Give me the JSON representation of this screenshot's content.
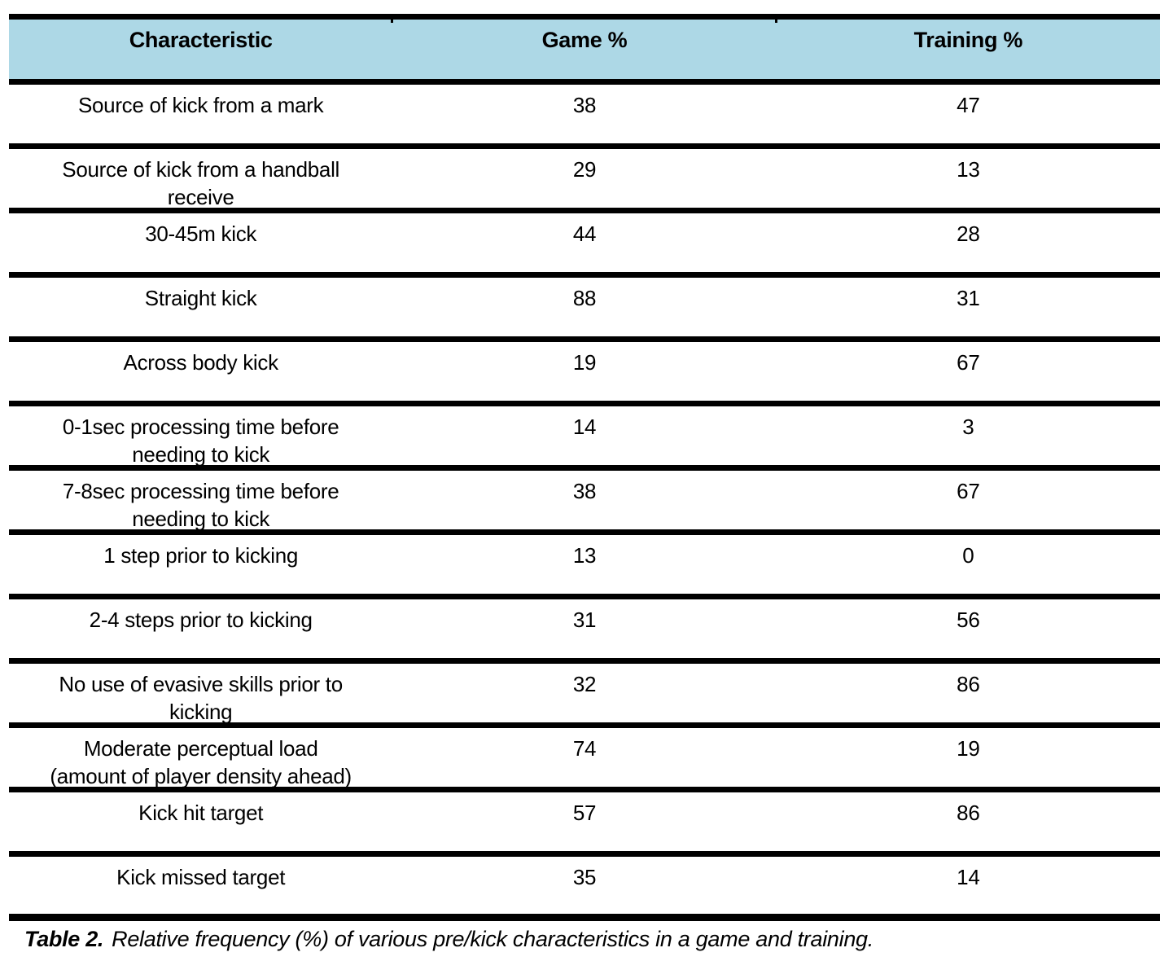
{
  "colors": {
    "header_bg": "#ADD8E6",
    "border": "#000000",
    "text": "#000000",
    "page_bg": "#ffffff"
  },
  "table": {
    "header": {
      "characteristic": "Characteristic",
      "game": "Game %",
      "training": "Training %"
    },
    "rows": [
      {
        "characteristic": "Source of kick from a mark",
        "game": 38,
        "training": 47
      },
      {
        "characteristic": "Source of kick from a handball\nreceive",
        "game": 29,
        "training": 13
      },
      {
        "characteristic": "30-45m kick",
        "game": 44,
        "training": 28
      },
      {
        "characteristic": "Straight kick",
        "game": 88,
        "training": 31
      },
      {
        "characteristic": "Across body kick",
        "game": 19,
        "training": 67
      },
      {
        "characteristic": "0-1sec processing time before\nneeding to kick",
        "game": 14,
        "training": 3
      },
      {
        "characteristic": "7-8sec processing time before\nneeding to kick",
        "game": 38,
        "training": 67
      },
      {
        "characteristic": "1 step prior to kicking",
        "game": 13,
        "training": 0
      },
      {
        "characteristic": "2-4 steps prior to kicking",
        "game": 31,
        "training": 56
      },
      {
        "characteristic": "No use of evasive skills prior to\nkicking",
        "game": 32,
        "training": 86
      },
      {
        "characteristic": "Moderate perceptual load\n(amount of player density ahead)",
        "game": 74,
        "training": 19
      },
      {
        "characteristic": "Kick hit target",
        "game": 57,
        "training": 86
      },
      {
        "characteristic": "Kick missed target",
        "game": 35,
        "training": 14
      }
    ],
    "caption": {
      "label": "Table 2.",
      "text": "Relative frequency (%) of various pre/kick characteristics in a game and training."
    }
  },
  "chart_data": {
    "type": "table",
    "title": "Table 2. Relative frequency (%) of various pre/kick characteristics in a game and training.",
    "columns": [
      "Characteristic",
      "Game %",
      "Training %"
    ],
    "categories": [
      "Source of kick from a mark",
      "Source of kick from a handball receive",
      "30-45m kick",
      "Straight kick",
      "Across body kick",
      "0-1sec processing time before needing to kick",
      "7-8sec processing time before needing to kick",
      "1 step prior to kicking",
      "2-4 steps prior to kicking",
      "No use of evasive skills prior to kicking",
      "Moderate perceptual load (amount of player density ahead)",
      "Kick hit target",
      "Kick missed target"
    ],
    "series": [
      {
        "name": "Game %",
        "values": [
          38,
          29,
          44,
          88,
          19,
          14,
          38,
          13,
          31,
          32,
          74,
          57,
          35
        ]
      },
      {
        "name": "Training %",
        "values": [
          47,
          13,
          28,
          31,
          67,
          3,
          67,
          0,
          56,
          86,
          19,
          86,
          14
        ]
      }
    ]
  }
}
